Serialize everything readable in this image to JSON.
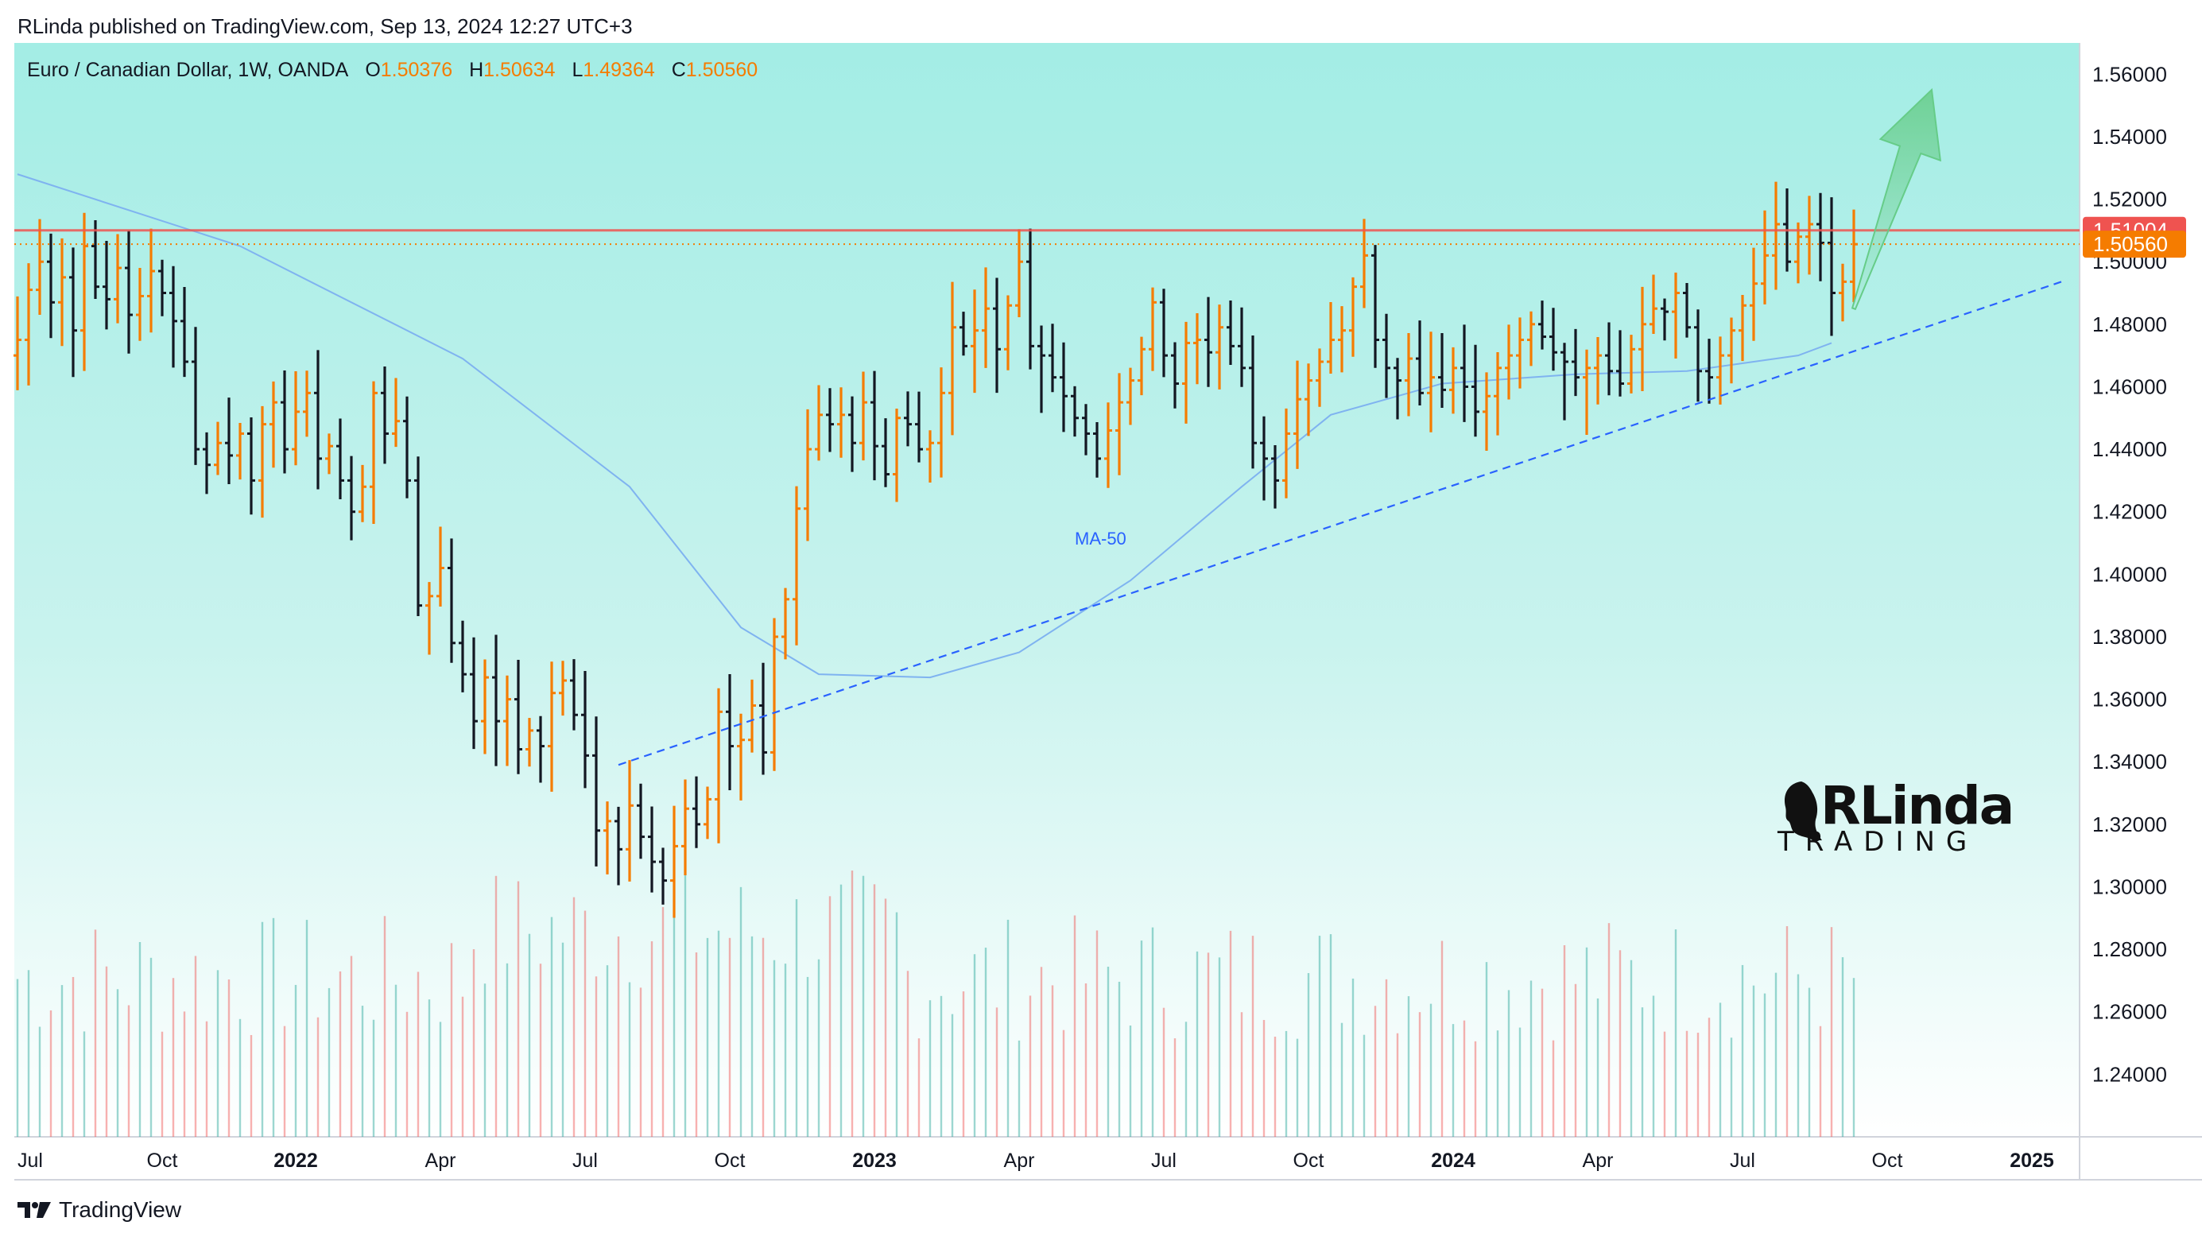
{
  "header": {
    "published_line": "RLinda published on TradingView.com, Sep 13, 2024 12:27 UTC+3"
  },
  "legend": {
    "symbol": "Euro / Canadian Dollar, 1W, OANDA",
    "open_label": "O",
    "open": "1.50376",
    "high_label": "H",
    "high": "1.50634",
    "low_label": "L",
    "low": "1.49364",
    "close_label": "C",
    "close": "1.50560"
  },
  "annotations": {
    "ma_label": "MA-50"
  },
  "watermark": {
    "brand": "RLinda",
    "sub": "TRADING"
  },
  "footer": {
    "brand": "TradingView"
  },
  "colors": {
    "background_top": "#a3ede5",
    "background_bottom": "#ffffff",
    "bull": "#f57c00",
    "bear": "#131722",
    "resistance": "#ef5350",
    "trend": "#2962ff",
    "ma": "#7fb3f0",
    "arrow": "#66cc88",
    "vol_up": "#26a69a",
    "vol_down": "#ef5350"
  },
  "chart_data": {
    "type": "ohlc",
    "title": "Euro / Canadian Dollar, 1W, OANDA",
    "ylim": [
      1.22,
      1.57
    ],
    "y_ticks": [
      "1.24000",
      "1.26000",
      "1.28000",
      "1.30000",
      "1.32000",
      "1.34000",
      "1.36000",
      "1.38000",
      "1.40000",
      "1.42000",
      "1.44000",
      "1.46000",
      "1.48000",
      "1.50000",
      "1.52000",
      "1.54000",
      "1.56000"
    ],
    "x_ticks": [
      {
        "label": "Jul",
        "bold": false,
        "week": 0
      },
      {
        "label": "Oct",
        "bold": false,
        "week": 13
      },
      {
        "label": "2022",
        "bold": true,
        "week": 25
      },
      {
        "label": "Apr",
        "bold": false,
        "week": 38
      },
      {
        "label": "Jul",
        "bold": false,
        "week": 51
      },
      {
        "label": "Oct",
        "bold": false,
        "week": 64
      },
      {
        "label": "2023",
        "bold": true,
        "week": 77
      },
      {
        "label": "Apr",
        "bold": false,
        "week": 90
      },
      {
        "label": "Jul",
        "bold": false,
        "week": 103
      },
      {
        "label": "Oct",
        "bold": false,
        "week": 116
      },
      {
        "label": "2024",
        "bold": true,
        "week": 129
      },
      {
        "label": "Apr",
        "bold": false,
        "week": 142
      },
      {
        "label": "Jul",
        "bold": false,
        "week": 155
      },
      {
        "label": "Oct",
        "bold": false,
        "week": 168
      },
      {
        "label": "2025",
        "bold": true,
        "week": 181
      }
    ],
    "week_count": 184,
    "closes": [
      1.475,
      1.491,
      1.5,
      1.487,
      1.495,
      1.478,
      1.505,
      1.492,
      1.488,
      1.498,
      1.483,
      1.489,
      1.497,
      1.49,
      1.481,
      1.468,
      1.44,
      1.435,
      1.442,
      1.438,
      1.445,
      1.43,
      1.448,
      1.455,
      1.44,
      1.452,
      1.458,
      1.437,
      1.441,
      1.43,
      1.42,
      1.428,
      1.458,
      1.445,
      1.449,
      1.43,
      1.39,
      1.393,
      1.402,
      1.378,
      1.368,
      1.353,
      1.367,
      1.353,
      1.36,
      1.344,
      1.35,
      1.345,
      1.362,
      1.366,
      1.355,
      1.342,
      1.318,
      1.321,
      1.312,
      1.326,
      1.316,
      1.308,
      1.302,
      1.313,
      1.325,
      1.32,
      1.328,
      1.356,
      1.345,
      1.347,
      1.358,
      1.343,
      1.38,
      1.392,
      1.421,
      1.44,
      1.451,
      1.448,
      1.451,
      1.442,
      1.455,
      1.441,
      1.432,
      1.45,
      1.448,
      1.44,
      1.442,
      1.458,
      1.479,
      1.473,
      1.478,
      1.485,
      1.472,
      1.486,
      1.5,
      1.473,
      1.47,
      1.463,
      1.457,
      1.45,
      1.445,
      1.437,
      1.446,
      1.455,
      1.462,
      1.472,
      1.487,
      1.47,
      1.461,
      1.474,
      1.475,
      1.471,
      1.479,
      1.473,
      1.466,
      1.442,
      1.437,
      1.43,
      1.445,
      1.456,
      1.462,
      1.468,
      1.475,
      1.478,
      1.492,
      1.502,
      1.475,
      1.466,
      1.462,
      1.469,
      1.458,
      1.463,
      1.459,
      1.466,
      1.46,
      1.452,
      1.457,
      1.466,
      1.47,
      1.475,
      1.48,
      1.476,
      1.471,
      1.468,
      1.463,
      1.466,
      1.47,
      1.465,
      1.461,
      1.472,
      1.48,
      1.485,
      1.484,
      1.49,
      1.479,
      1.465,
      1.463,
      1.47,
      1.478,
      1.486,
      1.493,
      1.502,
      1.512,
      1.5,
      1.508,
      1.512,
      1.506,
      1.49,
      1.4936,
      1.5056
    ],
    "ma50": [
      [
        0,
        1.528
      ],
      [
        20,
        1.505
      ],
      [
        40,
        1.469
      ],
      [
        55,
        1.428
      ],
      [
        65,
        1.383
      ],
      [
        72,
        1.368
      ],
      [
        82,
        1.367
      ],
      [
        90,
        1.375
      ],
      [
        100,
        1.398
      ],
      [
        110,
        1.428
      ],
      [
        118,
        1.451
      ],
      [
        128,
        1.461
      ],
      [
        140,
        1.464
      ],
      [
        150,
        1.465
      ],
      [
        160,
        1.47
      ],
      [
        163,
        1.474
      ]
    ],
    "resistance": {
      "y": 1.51004,
      "label": "1.51004"
    },
    "last_price": {
      "y": 1.5056,
      "label": "1.50560"
    },
    "trendline": [
      [
        54,
        1.339
      ],
      [
        184,
        1.494
      ]
    ],
    "arrow": {
      "from": [
        165,
        1.485
      ],
      "to": [
        172,
        1.555
      ]
    },
    "volume": {
      "note": "weekly volume bars at bottom",
      "max_relative": 1.0
    }
  }
}
